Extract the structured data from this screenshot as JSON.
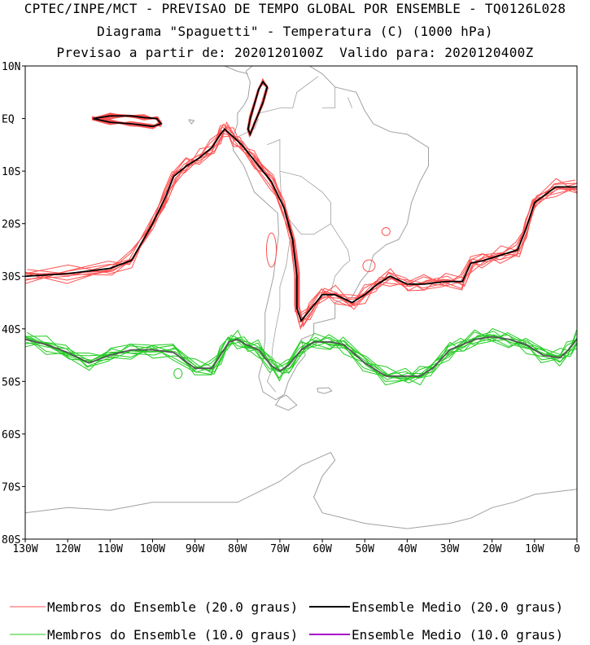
{
  "header": {
    "line1": "CPTEC/INPE/MCT - PREVISAO DE TEMPO GLOBAL POR ENSEMBLE - TQ0126L028",
    "line2": "Diagrama \"Spaguetti\" - Temperatura (C) (1000 hPa)",
    "line3": "Previsao a partir de: 2020120100Z  Valido para: 2020120400Z"
  },
  "map": {
    "lat_labels": [
      "10N",
      "EQ",
      "10S",
      "20S",
      "30S",
      "40S",
      "50S",
      "60S",
      "70S",
      "80S"
    ],
    "lon_labels": [
      "130W",
      "120W",
      "110W",
      "100W",
      "90W",
      "80W",
      "70W",
      "60W",
      "50W",
      "40W",
      "30W",
      "20W",
      "10W",
      "0"
    ],
    "lat_range": [
      10,
      -80
    ],
    "lon_range": [
      -130,
      0
    ]
  },
  "colors": {
    "member_20": "#ff5050",
    "mean_20": "#000000",
    "member_10": "#22cc22",
    "mean_10": "#aa00cc",
    "coast": "#a0a0a0"
  },
  "legend": {
    "members_20": "Membros do Ensemble (20.0 graus)",
    "mean_20": "Ensemble Medio (20.0 graus)",
    "members_10": "Membros do Ensemble (10.0 graus)",
    "mean_10": "Ensemble Medio (10.0 graus)"
  },
  "chart_data": {
    "type": "map",
    "isotherm_20": {
      "name": "Ensemble Medio (20.0 graus)",
      "lon": [
        -130,
        -120,
        -110,
        -105,
        -100,
        -97,
        -95,
        -92,
        -89,
        -86,
        -84,
        -83,
        -81,
        -79,
        -76,
        -72,
        -69,
        -67,
        -66,
        -66,
        -65,
        -63,
        -60,
        -57,
        -53,
        -50,
        -47,
        -44,
        -40,
        -36,
        -31,
        -27,
        -25,
        -22,
        -18,
        -14,
        -12,
        -10,
        -5,
        0
      ],
      "lat": [
        -30,
        -29.5,
        -28.5,
        -27,
        -20,
        -15,
        -11,
        -9,
        -7.5,
        -5.5,
        -3,
        -2,
        -3.5,
        -5,
        -8,
        -12,
        -17,
        -23,
        -30,
        -36,
        -38.5,
        -36.5,
        -33.5,
        -33.5,
        -35,
        -33.5,
        -31.5,
        -30,
        -31.5,
        -31.5,
        -31,
        -31,
        -27.5,
        -27,
        -26,
        -25,
        -21,
        -16,
        -13,
        -13
      ]
    },
    "isotherm_10": {
      "name": "Ensemble Medio (10.0 graus)",
      "lon": [
        -130,
        -125,
        -120,
        -115,
        -110,
        -105,
        -100,
        -95,
        -90,
        -86,
        -84,
        -82,
        -80,
        -78,
        -75,
        -72,
        -70,
        -68,
        -65,
        -62,
        -58,
        -55,
        -50,
        -45,
        -40,
        -37,
        -34,
        -30,
        -27,
        -24,
        -20,
        -16,
        -12,
        -8,
        -4,
        -2,
        0
      ],
      "lat": [
        -42,
        -43,
        -44.5,
        -46.5,
        -45,
        -44,
        -44,
        -44.5,
        -47.5,
        -47.5,
        -45,
        -42.5,
        -42,
        -43,
        -44,
        -47,
        -48,
        -47,
        -44,
        -42.5,
        -42.5,
        -43,
        -46.5,
        -49,
        -49,
        -49,
        -47.5,
        -44,
        -43,
        -42,
        -41.5,
        -42,
        -43,
        -45,
        -45.5,
        -44,
        -42
      ]
    },
    "closed_contours_20": [
      {
        "lon": [
          -114,
          -110,
          -105,
          -102,
          -99,
          -98,
          -100,
          -105,
          -110,
          -114
        ],
        "lat": [
          0,
          0.5,
          0.5,
          0.2,
          0,
          -1,
          -1.5,
          -1,
          -0.7,
          0
        ]
      },
      {
        "lon": [
          -76,
          -74,
          -73,
          -74,
          -75,
          -77,
          -77.5,
          -77,
          -76
        ],
        "lat": [
          -1,
          3,
          6,
          7,
          5.5,
          0,
          -2,
          -3,
          -1
        ]
      }
    ]
  }
}
